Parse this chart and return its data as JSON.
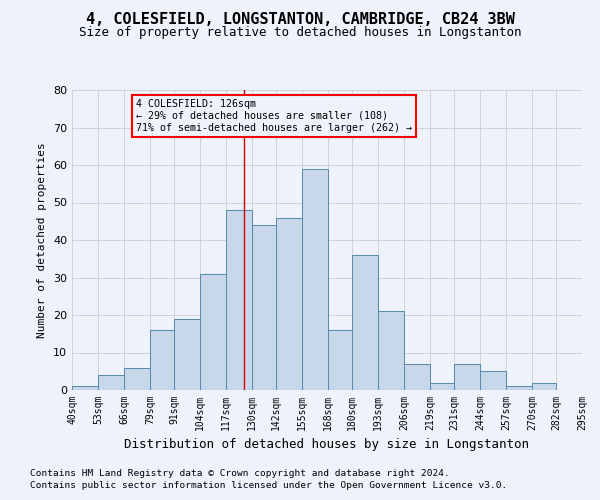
{
  "title_line1": "4, COLESFIELD, LONGSTANTON, CAMBRIDGE, CB24 3BW",
  "title_line2": "Size of property relative to detached houses in Longstanton",
  "xlabel": "Distribution of detached houses by size in Longstanton",
  "ylabel": "Number of detached properties",
  "footnote1": "Contains HM Land Registry data © Crown copyright and database right 2024.",
  "footnote2": "Contains public sector information licensed under the Open Government Licence v3.0.",
  "bar_color": "#c8d8ea",
  "bar_edge_color": "#5588aa",
  "grid_color": "#cccccc",
  "background_color": "#eef2fb",
  "annotation_text_line1": "4 COLESFIELD: 126sqm",
  "annotation_text_line2": "← 29% of detached houses are smaller (108)",
  "annotation_text_line3": "71% of semi-detached houses are larger (262) →",
  "annotation_box_color": "red",
  "vline_x": 126,
  "vline_color": "#cc0000",
  "bin_edges": [
    40,
    53,
    66,
    79,
    91,
    104,
    117,
    130,
    142,
    155,
    168,
    180,
    193,
    206,
    219,
    231,
    244,
    257,
    270,
    282,
    295
  ],
  "bar_heights": [
    1,
    4,
    6,
    16,
    19,
    31,
    48,
    44,
    46,
    59,
    16,
    36,
    21,
    7,
    2,
    7,
    5,
    1,
    2,
    0
  ],
  "ylim": [
    0,
    80
  ],
  "yticks": [
    0,
    10,
    20,
    30,
    40,
    50,
    60,
    70,
    80
  ],
  "figsize": [
    6.0,
    5.0
  ],
  "dpi": 100
}
